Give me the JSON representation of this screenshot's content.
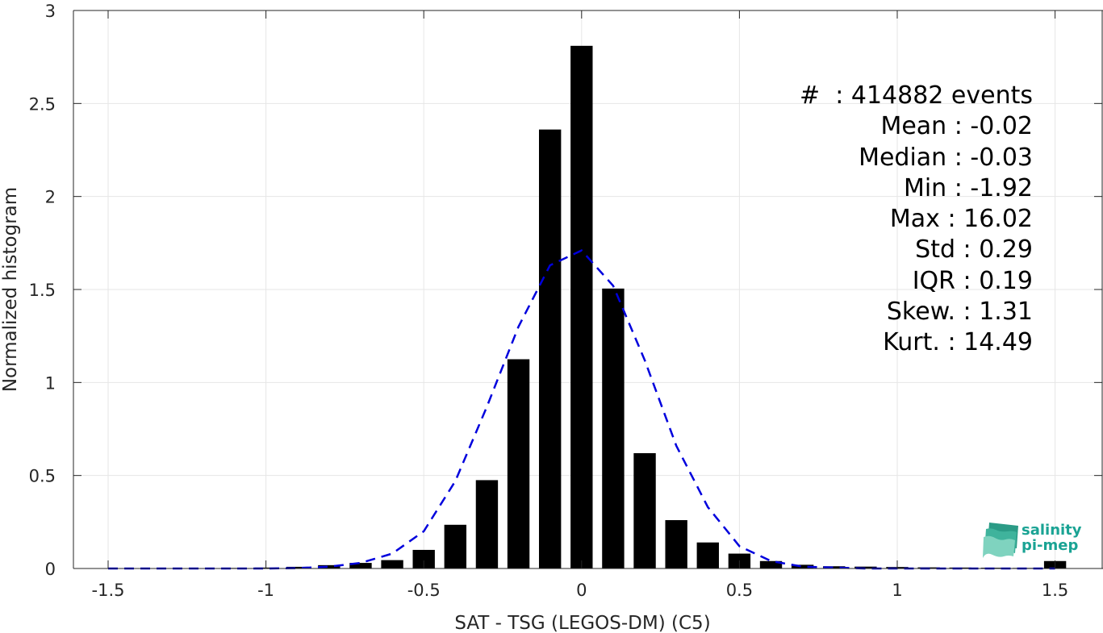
{
  "chart_data": {
    "type": "bar",
    "xlabel": "SAT - TSG (LEGOS-DM) (C5)",
    "ylabel": "Normalized histogram",
    "xlim": [
      -1.55,
      1.6
    ],
    "ylim": [
      0,
      3
    ],
    "xticks": [
      -1.5,
      -1,
      -0.5,
      0,
      0.5,
      1,
      1.5
    ],
    "yticks": [
      0,
      0.5,
      1,
      1.5,
      2,
      2.5,
      3
    ],
    "xtick_labels": [
      "-1.5",
      "-1",
      "-0.5",
      "0",
      "0.5",
      "1",
      "1.5"
    ],
    "ytick_labels": [
      "0",
      "0.5",
      "1",
      "1.5",
      "2",
      "2.5",
      "3"
    ],
    "grid": true,
    "bar_width": 0.07,
    "bars": {
      "color": "#000000",
      "x": [
        -1.5,
        -1.4,
        -1.3,
        -1.2,
        -1.1,
        -1.0,
        -0.9,
        -0.8,
        -0.7,
        -0.6,
        -0.5,
        -0.4,
        -0.3,
        -0.2,
        -0.1,
        0.0,
        0.1,
        0.2,
        0.3,
        0.4,
        0.5,
        0.6,
        0.7,
        0.8,
        0.9,
        1.0,
        1.1,
        1.2,
        1.3,
        1.4,
        1.5
      ],
      "values": [
        0.002,
        0.002,
        0.002,
        0.002,
        0.003,
        0.005,
        0.009,
        0.018,
        0.03,
        0.045,
        0.1,
        0.235,
        0.475,
        1.125,
        2.36,
        2.81,
        1.505,
        0.62,
        0.26,
        0.14,
        0.08,
        0.04,
        0.02,
        0.012,
        0.01,
        0.008,
        0.006,
        0.005,
        0.004,
        0.003,
        0.04
      ]
    },
    "fit_line": {
      "style": "dashed",
      "color": "#0000dd",
      "x": [
        -1.5,
        -1.4,
        -1.3,
        -1.2,
        -1.1,
        -1.0,
        -0.9,
        -0.8,
        -0.7,
        -0.6,
        -0.5,
        -0.4,
        -0.3,
        -0.2,
        -0.1,
        0.0,
        0.1,
        0.2,
        0.3,
        0.4,
        0.5,
        0.6,
        0.7,
        0.8,
        0.9,
        1.0,
        1.1,
        1.2,
        1.3,
        1.4,
        1.5
      ],
      "values": [
        0.0,
        0.0,
        0.0,
        0.0,
        0.0,
        0.0,
        0.002,
        0.01,
        0.03,
        0.08,
        0.2,
        0.47,
        0.87,
        1.3,
        1.63,
        1.71,
        1.52,
        1.12,
        0.66,
        0.33,
        0.12,
        0.04,
        0.01,
        0.005,
        0.0,
        0.0,
        0.0,
        0.0,
        0.0,
        0.0,
        0.0
      ]
    }
  },
  "stats": [
    "#  : 414882 events",
    "Mean : -0.02",
    "Median : -0.03",
    "Min : -1.92",
    "Max : 16.02",
    "Std : 0.29",
    "IQR : 0.19",
    "Skew. : 1.31",
    "Kurt. : 14.49"
  ],
  "logo": {
    "line1": "salinity",
    "line2": "pi-mep",
    "color": "#1aa394"
  }
}
